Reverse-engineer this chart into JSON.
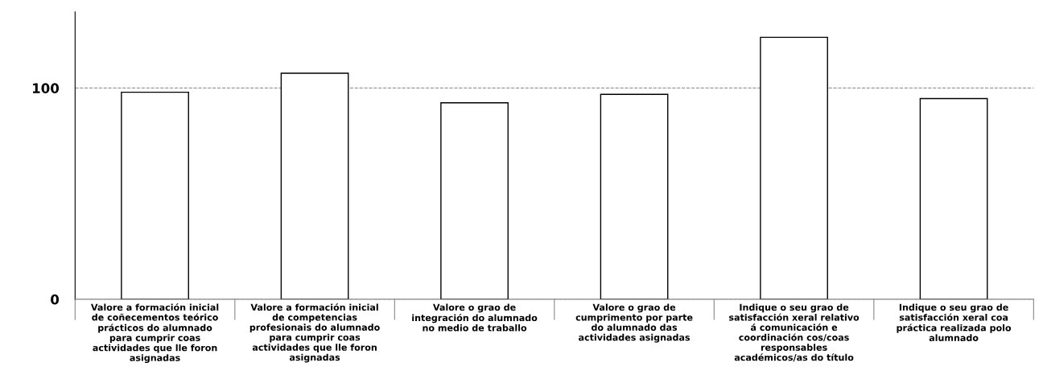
{
  "chart_data": {
    "type": "bar",
    "categories": [
      "Valore a formación inicial\nde coñecementos teórico\nprácticos do alumnado\npara cumprir coas\nactividades que lle foron\nasignadas",
      "Valore a formación inicial\nde competencias\nprofesionais do alumnado\npara cumprir coas\nactividades que lle foron\nasignadas",
      "Valore o grao de\nintegración do alumnado\nno medio de traballo",
      "Valore o grao de\ncumprimento por parte\ndo alumnado das\nactividades asignadas",
      "Indique o seu grao de\nsatisfacción xeral relativo\ná comunicación e\ncoordinación cos/coas\nresponsables\nacadémicos/as do título",
      "Indique o seu grao de\nsatisfacción xeral coa\npráctica realizada polo\nalumnado"
    ],
    "values": [
      98,
      107,
      93,
      97,
      124,
      95
    ],
    "color": "#ffffff",
    "ylim": [
      0,
      136
    ],
    "yticks": [
      0,
      100
    ],
    "grid": "y",
    "legend": false
  }
}
